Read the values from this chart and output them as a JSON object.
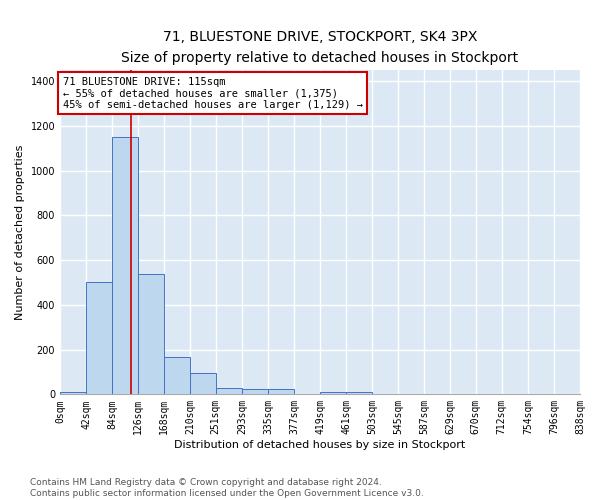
{
  "title": "71, BLUESTONE DRIVE, STOCKPORT, SK4 3PX",
  "subtitle": "Size of property relative to detached houses in Stockport",
  "xlabel": "Distribution of detached houses by size in Stockport",
  "ylabel": "Number of detached properties",
  "bin_edges": [
    0,
    42,
    84,
    126,
    168,
    210,
    251,
    293,
    335,
    377,
    419,
    461,
    503,
    545,
    587,
    629,
    670,
    712,
    754,
    796,
    838
  ],
  "bin_labels": [
    "0sqm",
    "42sqm",
    "84sqm",
    "126sqm",
    "168sqm",
    "210sqm",
    "251sqm",
    "293sqm",
    "335sqm",
    "377sqm",
    "419sqm",
    "461sqm",
    "503sqm",
    "545sqm",
    "587sqm",
    "629sqm",
    "670sqm",
    "712sqm",
    "754sqm",
    "796sqm",
    "838sqm"
  ],
  "bar_heights": [
    10,
    500,
    1150,
    540,
    165,
    95,
    28,
    22,
    22,
    0,
    10,
    10,
    0,
    0,
    0,
    0,
    0,
    0,
    0,
    0
  ],
  "bar_color": "#bdd7ee",
  "bar_edge_color": "#4472c4",
  "property_line_x": 115,
  "property_line_color": "#cc0000",
  "annotation_text": "71 BLUESTONE DRIVE: 115sqm\n← 55% of detached houses are smaller (1,375)\n45% of semi-detached houses are larger (1,129) →",
  "annotation_box_color": "#ffffff",
  "annotation_box_edge_color": "#cc0000",
  "ylim": [
    0,
    1450
  ],
  "yticks": [
    0,
    200,
    400,
    600,
    800,
    1000,
    1200,
    1400
  ],
  "background_color": "#dce9f5",
  "grid_color": "#ffffff",
  "footer_text": "Contains HM Land Registry data © Crown copyright and database right 2024.\nContains public sector information licensed under the Open Government Licence v3.0.",
  "title_fontsize": 10,
  "subtitle_fontsize": 9,
  "label_fontsize": 8,
  "tick_fontsize": 7,
  "annotation_fontsize": 7.5,
  "footer_fontsize": 6.5
}
